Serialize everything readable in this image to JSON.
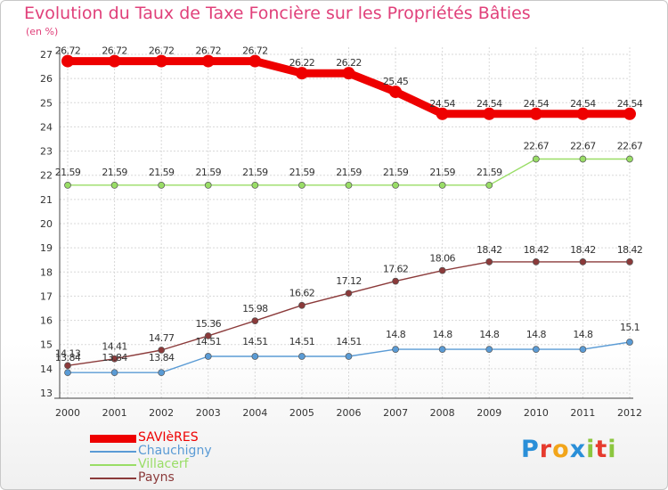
{
  "title": "Evolution du Taux de Taxe Foncière sur les Propriétés Bâties",
  "subtitle": "(en %)",
  "brand": {
    "text": "Proxiti",
    "letters": [
      {
        "ch": "P",
        "color": "#2a8fd8"
      },
      {
        "ch": "r",
        "color": "#e63b2e"
      },
      {
        "ch": "o",
        "color": "#f2a51a"
      },
      {
        "ch": "x",
        "color": "#2a8fd8"
      },
      {
        "ch": "i",
        "color": "#8cc63f"
      },
      {
        "ch": "t",
        "color": "#e63b2e"
      },
      {
        "ch": "i",
        "color": "#8cc63f"
      }
    ]
  },
  "chart_data": {
    "type": "line",
    "title": "Evolution du Taux de Taxe Foncière sur les Propriétés Bâties",
    "ylabel": "(en %)",
    "xlabel": "",
    "ylim": [
      13,
      27
    ],
    "yticks": [
      "13",
      "14",
      "15",
      "16",
      "17",
      "18",
      "19",
      "20",
      "21",
      "22",
      "23",
      "24",
      "25",
      "26",
      "27"
    ],
    "grid": true,
    "legend": "bottom-left",
    "x": [
      "2000",
      "2001",
      "2002",
      "2003",
      "2004",
      "2005",
      "2006",
      "2007",
      "2008",
      "2009",
      "2010",
      "2011",
      "2012"
    ],
    "series": [
      {
        "name": "SAVIèRES",
        "color": "#ee0000",
        "values": [
          26.72,
          26.72,
          26.72,
          26.72,
          26.72,
          26.22,
          26.22,
          25.45,
          24.54,
          24.54,
          24.54,
          24.54,
          24.54
        ],
        "labels": [
          "26.72",
          "26.72",
          "26.72",
          "26.72",
          "26.72",
          "26.22",
          "26.22",
          "25.45",
          "24.54",
          "24.54",
          "24.54",
          "24.54",
          "24.54"
        ]
      },
      {
        "name": "Chauchigny",
        "color": "#5a9bd5",
        "values": [
          13.84,
          13.84,
          13.84,
          14.51,
          14.51,
          14.51,
          14.51,
          14.8,
          14.8,
          14.8,
          14.8,
          14.8,
          15.1
        ],
        "labels": [
          "13.84",
          "13.84",
          "13.84",
          "14.51",
          "14.51",
          "14.51",
          "14.51",
          "14.8",
          "14.8",
          "14.8",
          "14.8",
          "14.8",
          "15.1"
        ]
      },
      {
        "name": "Villacerf",
        "color": "#99dd66",
        "values": [
          21.59,
          21.59,
          21.59,
          21.59,
          21.59,
          21.59,
          21.59,
          21.59,
          21.59,
          21.59,
          22.67,
          22.67,
          22.67
        ],
        "labels": [
          "21.59",
          "21.59",
          "21.59",
          "21.59",
          "21.59",
          "21.59",
          "21.59",
          "21.59",
          "21.59",
          "21.59",
          "22.67",
          "22.67",
          "22.67"
        ]
      },
      {
        "name": "Payns",
        "color": "#8b3a3a",
        "values": [
          14.13,
          14.41,
          14.77,
          15.36,
          15.98,
          16.62,
          17.12,
          17.62,
          18.06,
          18.42,
          18.42,
          18.42,
          18.42
        ],
        "labels": [
          "14.13",
          "14.41",
          "14.77",
          "15.36",
          "15.98",
          "16.62",
          "17.12",
          "17.62",
          "18.06",
          "18.42",
          "18.42",
          "18.42",
          "18.42"
        ]
      }
    ]
  }
}
